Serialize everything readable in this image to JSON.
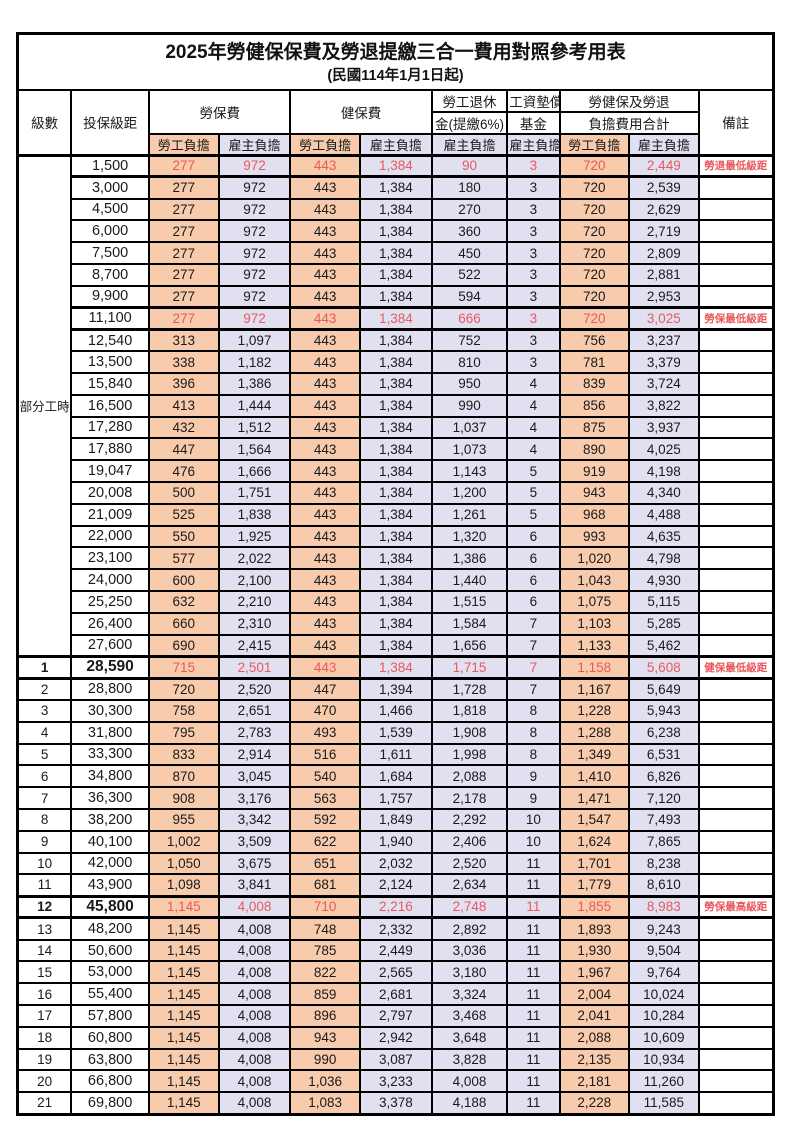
{
  "title": "2025年勞健保保費及勞退提繳三合一費用對照參考用表",
  "subtitle": "(民國114年1月1日起)",
  "header": {
    "level": "級數",
    "salary_bracket": "投保級距",
    "labor_insurance": "勞保費",
    "health_insurance": "健保費",
    "pension_line1": "勞工退休",
    "pension_line2": "金(提繳6%)",
    "wage_fund_line1": "工資墊償",
    "wage_fund_line2": "基金",
    "total_line1": "勞健保及勞退",
    "total_line2": "負擔費用合計",
    "note": "備註",
    "employee_burden": "勞工負擔",
    "employer_burden": "雇主負擔"
  },
  "group_label": "部分工時",
  "group_rowspan": 23,
  "colors": {
    "employee_bg": "#F8CBAD",
    "employer_bg": "#E1E0F1",
    "highlight_text": "#E8595C",
    "border": "#000000"
  },
  "rows": [
    {
      "level": "",
      "salary": "1,500",
      "values": [
        "277",
        "972",
        "443",
        "1,384",
        "90",
        "3",
        "720",
        "2,449"
      ],
      "note": "勞退最低級距",
      "red": true,
      "bold": false
    },
    {
      "level": "",
      "salary": "3,000",
      "values": [
        "277",
        "972",
        "443",
        "1,384",
        "180",
        "3",
        "720",
        "2,539"
      ],
      "note": "",
      "red": false,
      "bold": false
    },
    {
      "level": "",
      "salary": "4,500",
      "values": [
        "277",
        "972",
        "443",
        "1,384",
        "270",
        "3",
        "720",
        "2,629"
      ],
      "note": "",
      "red": false,
      "bold": false
    },
    {
      "level": "",
      "salary": "6,000",
      "values": [
        "277",
        "972",
        "443",
        "1,384",
        "360",
        "3",
        "720",
        "2,719"
      ],
      "note": "",
      "red": false,
      "bold": false
    },
    {
      "level": "",
      "salary": "7,500",
      "values": [
        "277",
        "972",
        "443",
        "1,384",
        "450",
        "3",
        "720",
        "2,809"
      ],
      "note": "",
      "red": false,
      "bold": false
    },
    {
      "level": "",
      "salary": "8,700",
      "values": [
        "277",
        "972",
        "443",
        "1,384",
        "522",
        "3",
        "720",
        "2,881"
      ],
      "note": "",
      "red": false,
      "bold": false
    },
    {
      "level": "",
      "salary": "9,900",
      "values": [
        "277",
        "972",
        "443",
        "1,384",
        "594",
        "3",
        "720",
        "2,953"
      ],
      "note": "",
      "red": false,
      "bold": false
    },
    {
      "level": "",
      "salary": "11,100",
      "values": [
        "277",
        "972",
        "443",
        "1,384",
        "666",
        "3",
        "720",
        "3,025"
      ],
      "note": "勞保最低級距",
      "red": true,
      "bold": false
    },
    {
      "level": "",
      "salary": "12,540",
      "values": [
        "313",
        "1,097",
        "443",
        "1,384",
        "752",
        "3",
        "756",
        "3,237"
      ],
      "note": "",
      "red": false,
      "bold": false
    },
    {
      "level": "",
      "salary": "13,500",
      "values": [
        "338",
        "1,182",
        "443",
        "1,384",
        "810",
        "3",
        "781",
        "3,379"
      ],
      "note": "",
      "red": false,
      "bold": false
    },
    {
      "level": "",
      "salary": "15,840",
      "values": [
        "396",
        "1,386",
        "443",
        "1,384",
        "950",
        "4",
        "839",
        "3,724"
      ],
      "note": "",
      "red": false,
      "bold": false
    },
    {
      "level": "",
      "salary": "16,500",
      "values": [
        "413",
        "1,444",
        "443",
        "1,384",
        "990",
        "4",
        "856",
        "3,822"
      ],
      "note": "",
      "red": false,
      "bold": false
    },
    {
      "level": "",
      "salary": "17,280",
      "values": [
        "432",
        "1,512",
        "443",
        "1,384",
        "1,037",
        "4",
        "875",
        "3,937"
      ],
      "note": "",
      "red": false,
      "bold": false
    },
    {
      "level": "",
      "salary": "17,880",
      "values": [
        "447",
        "1,564",
        "443",
        "1,384",
        "1,073",
        "4",
        "890",
        "4,025"
      ],
      "note": "",
      "red": false,
      "bold": false
    },
    {
      "level": "",
      "salary": "19,047",
      "values": [
        "476",
        "1,666",
        "443",
        "1,384",
        "1,143",
        "5",
        "919",
        "4,198"
      ],
      "note": "",
      "red": false,
      "bold": false
    },
    {
      "level": "",
      "salary": "20,008",
      "values": [
        "500",
        "1,751",
        "443",
        "1,384",
        "1,200",
        "5",
        "943",
        "4,340"
      ],
      "note": "",
      "red": false,
      "bold": false
    },
    {
      "level": "",
      "salary": "21,009",
      "values": [
        "525",
        "1,838",
        "443",
        "1,384",
        "1,261",
        "5",
        "968",
        "4,488"
      ],
      "note": "",
      "red": false,
      "bold": false
    },
    {
      "level": "",
      "salary": "22,000",
      "values": [
        "550",
        "1,925",
        "443",
        "1,384",
        "1,320",
        "6",
        "993",
        "4,635"
      ],
      "note": "",
      "red": false,
      "bold": false
    },
    {
      "level": "",
      "salary": "23,100",
      "values": [
        "577",
        "2,022",
        "443",
        "1,384",
        "1,386",
        "6",
        "1,020",
        "4,798"
      ],
      "note": "",
      "red": false,
      "bold": false
    },
    {
      "level": "",
      "salary": "24,000",
      "values": [
        "600",
        "2,100",
        "443",
        "1,384",
        "1,440",
        "6",
        "1,043",
        "4,930"
      ],
      "note": "",
      "red": false,
      "bold": false
    },
    {
      "level": "",
      "salary": "25,250",
      "values": [
        "632",
        "2,210",
        "443",
        "1,384",
        "1,515",
        "6",
        "1,075",
        "5,115"
      ],
      "note": "",
      "red": false,
      "bold": false
    },
    {
      "level": "",
      "salary": "26,400",
      "values": [
        "660",
        "2,310",
        "443",
        "1,384",
        "1,584",
        "7",
        "1,103",
        "5,285"
      ],
      "note": "",
      "red": false,
      "bold": false
    },
    {
      "level": "",
      "salary": "27,600",
      "values": [
        "690",
        "2,415",
        "443",
        "1,384",
        "1,656",
        "7",
        "1,133",
        "5,462"
      ],
      "note": "",
      "red": false,
      "bold": false
    },
    {
      "level": "1",
      "salary": "28,590",
      "values": [
        "715",
        "2,501",
        "443",
        "1,384",
        "1,715",
        "7",
        "1,158",
        "5,608"
      ],
      "note": "健保最低級距",
      "red": true,
      "bold": true
    },
    {
      "level": "2",
      "salary": "28,800",
      "values": [
        "720",
        "2,520",
        "447",
        "1,394",
        "1,728",
        "7",
        "1,167",
        "5,649"
      ],
      "note": "",
      "red": false,
      "bold": false
    },
    {
      "level": "3",
      "salary": "30,300",
      "values": [
        "758",
        "2,651",
        "470",
        "1,466",
        "1,818",
        "8",
        "1,228",
        "5,943"
      ],
      "note": "",
      "red": false,
      "bold": false
    },
    {
      "level": "4",
      "salary": "31,800",
      "values": [
        "795",
        "2,783",
        "493",
        "1,539",
        "1,908",
        "8",
        "1,288",
        "6,238"
      ],
      "note": "",
      "red": false,
      "bold": false
    },
    {
      "level": "5",
      "salary": "33,300",
      "values": [
        "833",
        "2,914",
        "516",
        "1,611",
        "1,998",
        "8",
        "1,349",
        "6,531"
      ],
      "note": "",
      "red": false,
      "bold": false
    },
    {
      "level": "6",
      "salary": "34,800",
      "values": [
        "870",
        "3,045",
        "540",
        "1,684",
        "2,088",
        "9",
        "1,410",
        "6,826"
      ],
      "note": "",
      "red": false,
      "bold": false
    },
    {
      "level": "7",
      "salary": "36,300",
      "values": [
        "908",
        "3,176",
        "563",
        "1,757",
        "2,178",
        "9",
        "1,471",
        "7,120"
      ],
      "note": "",
      "red": false,
      "bold": false
    },
    {
      "level": "8",
      "salary": "38,200",
      "values": [
        "955",
        "3,342",
        "592",
        "1,849",
        "2,292",
        "10",
        "1,547",
        "7,493"
      ],
      "note": "",
      "red": false,
      "bold": false
    },
    {
      "level": "9",
      "salary": "40,100",
      "values": [
        "1,002",
        "3,509",
        "622",
        "1,940",
        "2,406",
        "10",
        "1,624",
        "7,865"
      ],
      "note": "",
      "red": false,
      "bold": false
    },
    {
      "level": "10",
      "salary": "42,000",
      "values": [
        "1,050",
        "3,675",
        "651",
        "2,032",
        "2,520",
        "11",
        "1,701",
        "8,238"
      ],
      "note": "",
      "red": false,
      "bold": false
    },
    {
      "level": "11",
      "salary": "43,900",
      "values": [
        "1,098",
        "3,841",
        "681",
        "2,124",
        "2,634",
        "11",
        "1,779",
        "8,610"
      ],
      "note": "",
      "red": false,
      "bold": false
    },
    {
      "level": "12",
      "salary": "45,800",
      "values": [
        "1,145",
        "4,008",
        "710",
        "2,216",
        "2,748",
        "11",
        "1,855",
        "8,983"
      ],
      "note": "勞保最高級距",
      "red": true,
      "bold": true
    },
    {
      "level": "13",
      "salary": "48,200",
      "values": [
        "1,145",
        "4,008",
        "748",
        "2,332",
        "2,892",
        "11",
        "1,893",
        "9,243"
      ],
      "note": "",
      "red": false,
      "bold": false
    },
    {
      "level": "14",
      "salary": "50,600",
      "values": [
        "1,145",
        "4,008",
        "785",
        "2,449",
        "3,036",
        "11",
        "1,930",
        "9,504"
      ],
      "note": "",
      "red": false,
      "bold": false
    },
    {
      "level": "15",
      "salary": "53,000",
      "values": [
        "1,145",
        "4,008",
        "822",
        "2,565",
        "3,180",
        "11",
        "1,967",
        "9,764"
      ],
      "note": "",
      "red": false,
      "bold": false
    },
    {
      "level": "16",
      "salary": "55,400",
      "values": [
        "1,145",
        "4,008",
        "859",
        "2,681",
        "3,324",
        "11",
        "2,004",
        "10,024"
      ],
      "note": "",
      "red": false,
      "bold": false
    },
    {
      "level": "17",
      "salary": "57,800",
      "values": [
        "1,145",
        "4,008",
        "896",
        "2,797",
        "3,468",
        "11",
        "2,041",
        "10,284"
      ],
      "note": "",
      "red": false,
      "bold": false
    },
    {
      "level": "18",
      "salary": "60,800",
      "values": [
        "1,145",
        "4,008",
        "943",
        "2,942",
        "3,648",
        "11",
        "2,088",
        "10,609"
      ],
      "note": "",
      "red": false,
      "bold": false
    },
    {
      "level": "19",
      "salary": "63,800",
      "values": [
        "1,145",
        "4,008",
        "990",
        "3,087",
        "3,828",
        "11",
        "2,135",
        "10,934"
      ],
      "note": "",
      "red": false,
      "bold": false
    },
    {
      "level": "20",
      "salary": "66,800",
      "values": [
        "1,145",
        "4,008",
        "1,036",
        "3,233",
        "4,008",
        "11",
        "2,181",
        "11,260"
      ],
      "note": "",
      "red": false,
      "bold": false
    },
    {
      "level": "21",
      "salary": "69,800",
      "values": [
        "1,145",
        "4,008",
        "1,083",
        "3,378",
        "4,188",
        "11",
        "2,228",
        "11,585"
      ],
      "note": "",
      "red": false,
      "bold": false
    }
  ]
}
